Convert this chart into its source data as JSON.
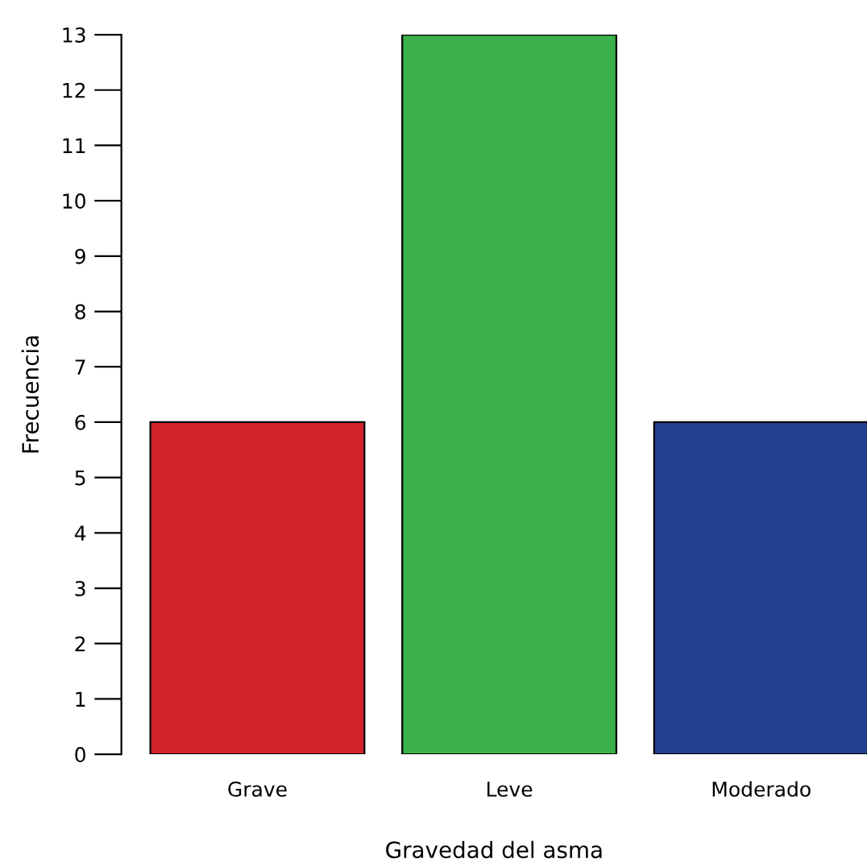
{
  "chart_data": {
    "type": "bar",
    "xlabel": "Gravedad del asma",
    "ylabel": "Frecuencia",
    "categories": [
      "Grave",
      "Leve",
      "Moderado"
    ],
    "values": [
      6,
      13,
      6
    ],
    "colors": [
      "#d2232a",
      "#3cb04a",
      "#233f8e"
    ],
    "ylim": [
      0,
      13
    ],
    "yticks": [
      0,
      1,
      2,
      3,
      4,
      5,
      6,
      7,
      8,
      9,
      10,
      11,
      12,
      13
    ],
    "grid": false,
    "legend": false
  }
}
